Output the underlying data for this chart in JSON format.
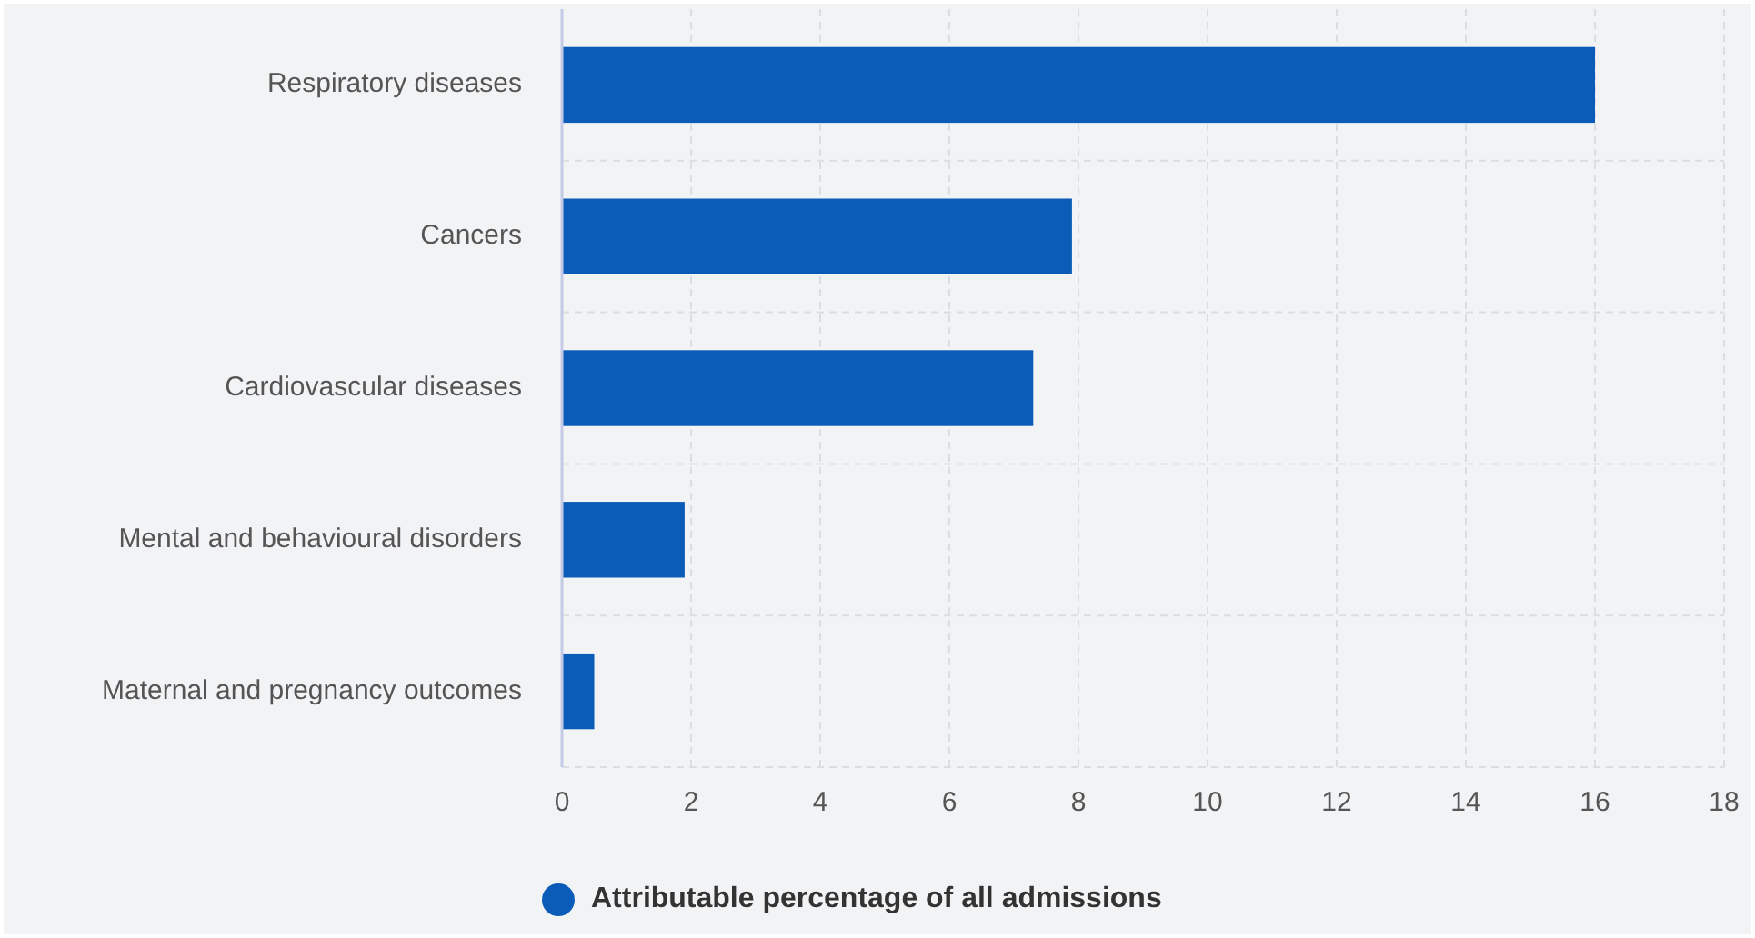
{
  "chart_data": {
    "type": "bar",
    "orientation": "horizontal",
    "categories": [
      "Respiratory diseases",
      "Cancers",
      "Cardiovascular diseases",
      "Mental and behavioural disorders",
      "Maternal and pregnancy outcomes"
    ],
    "series": [
      {
        "name": "Attributable percentage of all admissions",
        "color": "#0a5cb8",
        "values": [
          16,
          7.9,
          7.3,
          1.9,
          0.5
        ]
      }
    ],
    "xlim": [
      0,
      18
    ],
    "xticks": [
      0,
      2,
      4,
      6,
      8,
      10,
      12,
      14,
      16,
      18
    ],
    "grid": true,
    "legend": "bottom",
    "marker": "circle"
  }
}
